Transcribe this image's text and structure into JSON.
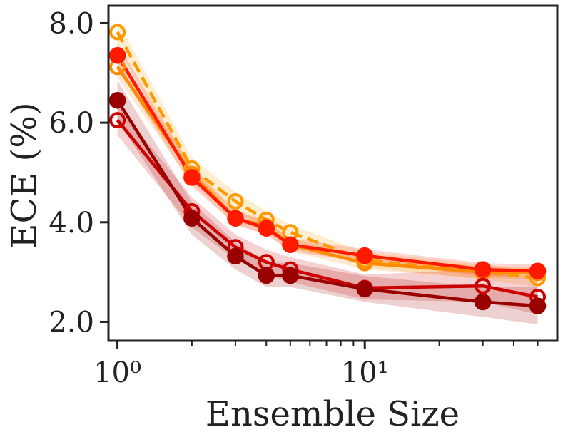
{
  "chart_data": {
    "type": "line",
    "title": "",
    "xlabel": "Ensemble Size",
    "ylabel": "ECE (%)",
    "xscale": "log",
    "xlim": [
      0.92,
      60
    ],
    "ylim": [
      1.62,
      8.35
    ],
    "x_ticks": [
      1,
      10
    ],
    "x_tick_labels": [
      "10⁰",
      "10¹"
    ],
    "y_ticks": [
      2.0,
      4.0,
      6.0,
      8.0
    ],
    "y_tick_labels": [
      "2.0",
      "4.0",
      "6.0",
      "8.0"
    ],
    "grid": false,
    "legend": "none",
    "x": [
      1,
      2,
      3,
      4,
      5,
      10,
      30,
      50
    ],
    "series": [
      {
        "name": "orange-dashed-open",
        "color": "#ff9900",
        "dashed": true,
        "marker": "open-circle",
        "values": [
          7.82,
          5.08,
          4.42,
          4.05,
          3.8,
          3.24,
          3.0,
          2.88
        ],
        "band": [
          [
            7.55,
            8.05
          ],
          [
            4.85,
            5.3
          ],
          [
            4.25,
            4.6
          ],
          [
            3.88,
            4.22
          ],
          [
            3.65,
            3.95
          ],
          [
            3.1,
            3.4
          ],
          [
            2.85,
            3.15
          ],
          [
            2.7,
            3.05
          ]
        ]
      },
      {
        "name": "orange-open",
        "color": "#ff8a00",
        "dashed": false,
        "marker": "open-circle",
        "values": [
          7.12,
          4.97,
          4.08,
          3.92,
          3.55,
          3.18,
          3.0,
          2.98
        ],
        "band": [
          [
            6.9,
            7.35
          ],
          [
            4.78,
            5.15
          ],
          [
            3.95,
            4.25
          ],
          [
            3.78,
            4.05
          ],
          [
            3.42,
            3.68
          ],
          [
            3.05,
            3.3
          ],
          [
            2.88,
            3.12
          ],
          [
            2.85,
            3.1
          ]
        ]
      },
      {
        "name": "red-filled",
        "color": "#ff1a00",
        "dashed": false,
        "marker": "filled-circle",
        "values": [
          7.35,
          4.9,
          4.08,
          3.88,
          3.55,
          3.33,
          3.05,
          3.02
        ],
        "band": [
          [
            7.1,
            7.6
          ],
          [
            4.72,
            5.08
          ],
          [
            3.95,
            4.22
          ],
          [
            3.75,
            4.02
          ],
          [
            3.42,
            3.68
          ],
          [
            3.2,
            3.46
          ],
          [
            2.92,
            3.18
          ],
          [
            2.9,
            3.15
          ]
        ]
      },
      {
        "name": "crimson-open",
        "color": "#cc0000",
        "dashed": false,
        "marker": "open-circle",
        "values": [
          6.05,
          4.22,
          3.5,
          3.2,
          3.05,
          2.68,
          2.72,
          2.5
        ],
        "band": [
          [
            5.75,
            6.35
          ],
          [
            3.9,
            4.5
          ],
          [
            3.25,
            3.75
          ],
          [
            2.95,
            3.45
          ],
          [
            2.8,
            3.3
          ],
          [
            2.45,
            2.95
          ],
          [
            2.4,
            3.05
          ],
          [
            2.15,
            2.85
          ]
        ]
      },
      {
        "name": "darkred-filled",
        "color": "#990000",
        "dashed": false,
        "marker": "filled-circle",
        "values": [
          6.45,
          4.08,
          3.32,
          2.93,
          2.93,
          2.66,
          2.4,
          2.32
        ],
        "band": [
          [
            6.05,
            6.85
          ],
          [
            3.75,
            4.4
          ],
          [
            3.05,
            3.6
          ],
          [
            2.7,
            3.2
          ],
          [
            2.7,
            3.18
          ],
          [
            2.4,
            2.92
          ],
          [
            2.1,
            2.7
          ],
          [
            1.95,
            2.7
          ]
        ]
      }
    ]
  }
}
